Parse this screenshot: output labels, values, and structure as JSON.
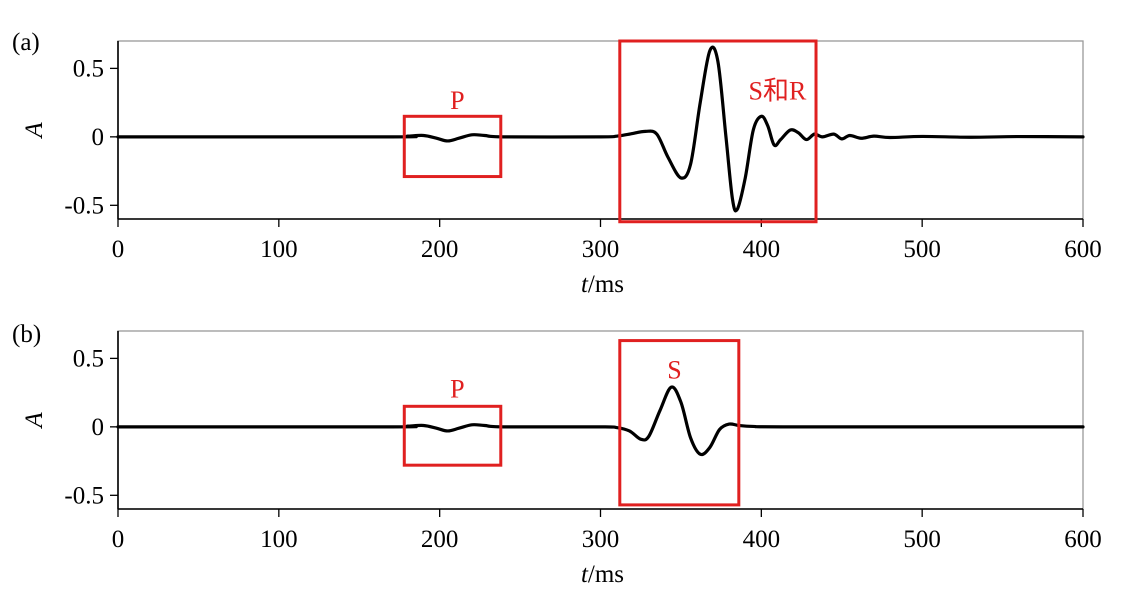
{
  "chart_data": [
    {
      "type": "line",
      "panel_label": "(a)",
      "xlabel_italic": "t",
      "xlabel_unit": "/ms",
      "ylabel": "A",
      "xlim": [
        0,
        600
      ],
      "ylim": [
        -0.6,
        0.7
      ],
      "xticks": [
        0,
        100,
        200,
        300,
        400,
        500,
        600
      ],
      "xtick_labels": [
        "0",
        "100",
        "200",
        "300",
        "400",
        "500",
        "600"
      ],
      "yticks": [
        0.5,
        0,
        -0.5
      ],
      "ytick_labels": [
        "0.5",
        "0",
        "-0.5"
      ],
      "grid": false,
      "series": [
        {
          "color": "#000000",
          "points": [
            [
              0,
              0
            ],
            [
              170,
              0
            ],
            [
              180,
              0.005
            ],
            [
              190,
              0.01
            ],
            [
              198,
              -0.01
            ],
            [
              205,
              -0.03
            ],
            [
              212,
              -0.01
            ],
            [
              220,
              0.015
            ],
            [
              228,
              0.01
            ],
            [
              240,
              0
            ],
            [
              300,
              0
            ],
            [
              310,
              0.005
            ],
            [
              318,
              0.02
            ],
            [
              328,
              0.04
            ],
            [
              335,
              0.02
            ],
            [
              342,
              -0.15
            ],
            [
              350,
              -0.3
            ],
            [
              356,
              -0.2
            ],
            [
              362,
              0.25
            ],
            [
              368,
              0.63
            ],
            [
              373,
              0.55
            ],
            [
              378,
              0.0
            ],
            [
              382,
              -0.45
            ],
            [
              385,
              -0.53
            ],
            [
              390,
              -0.3
            ],
            [
              395,
              0.05
            ],
            [
              400,
              0.15
            ],
            [
              404,
              0.08
            ],
            [
              408,
              -0.06
            ],
            [
              412,
              -0.02
            ],
            [
              418,
              0.05
            ],
            [
              423,
              0.03
            ],
            [
              428,
              -0.02
            ],
            [
              433,
              0.02
            ],
            [
              438,
              0.0
            ],
            [
              445,
              0.02
            ],
            [
              450,
              -0.015
            ],
            [
              455,
              0.01
            ],
            [
              462,
              -0.01
            ],
            [
              470,
              0.005
            ],
            [
              480,
              -0.005
            ],
            [
              500,
              0.003
            ],
            [
              530,
              -0.003
            ],
            [
              560,
              0.002
            ],
            [
              600,
              0
            ]
          ]
        }
      ],
      "annotations": [
        {
          "label": "P",
          "x0": 178,
          "x1": 238,
          "y0": -0.29,
          "y1": 0.15,
          "label_x": 211,
          "label_y": 0.27,
          "color": "#e02020"
        },
        {
          "label": "S和R",
          "x0": 312,
          "x1": 434,
          "y0": -0.62,
          "y1": 0.7,
          "label_x": 410,
          "label_y": 0.34,
          "color": "#e02020"
        }
      ]
    },
    {
      "type": "line",
      "panel_label": "(b)",
      "xlabel_italic": "t",
      "xlabel_unit": "/ms",
      "ylabel": "A",
      "xlim": [
        0,
        600
      ],
      "ylim": [
        -0.6,
        0.7
      ],
      "xticks": [
        0,
        100,
        200,
        300,
        400,
        500,
        600
      ],
      "xtick_labels": [
        "0",
        "100",
        "200",
        "300",
        "400",
        "500",
        "600"
      ],
      "yticks": [
        0.5,
        0,
        -0.5
      ],
      "ytick_labels": [
        "0.5",
        "0",
        "-0.5"
      ],
      "grid": false,
      "series": [
        {
          "color": "#000000",
          "points": [
            [
              0,
              0
            ],
            [
              170,
              0
            ],
            [
              180,
              0.005
            ],
            [
              190,
              0.01
            ],
            [
              198,
              -0.01
            ],
            [
              205,
              -0.03
            ],
            [
              212,
              -0.01
            ],
            [
              220,
              0.015
            ],
            [
              228,
              0.01
            ],
            [
              240,
              0
            ],
            [
              300,
              0
            ],
            [
              310,
              -0.005
            ],
            [
              318,
              -0.03
            ],
            [
              325,
              -0.09
            ],
            [
              330,
              -0.07
            ],
            [
              337,
              0.12
            ],
            [
              344,
              0.29
            ],
            [
              350,
              0.18
            ],
            [
              356,
              -0.08
            ],
            [
              362,
              -0.2
            ],
            [
              368,
              -0.15
            ],
            [
              374,
              -0.02
            ],
            [
              380,
              0.02
            ],
            [
              386,
              0.01
            ],
            [
              395,
              0.003
            ],
            [
              420,
              0
            ],
            [
              600,
              0
            ]
          ]
        }
      ],
      "annotations": [
        {
          "label": "P",
          "x0": 178,
          "x1": 238,
          "y0": -0.28,
          "y1": 0.15,
          "label_x": 211,
          "label_y": 0.28,
          "color": "#e02020"
        },
        {
          "label": "S",
          "x0": 312,
          "x1": 386,
          "y0": -0.57,
          "y1": 0.63,
          "label_x": 346,
          "label_y": 0.42,
          "color": "#e02020"
        }
      ]
    }
  ]
}
